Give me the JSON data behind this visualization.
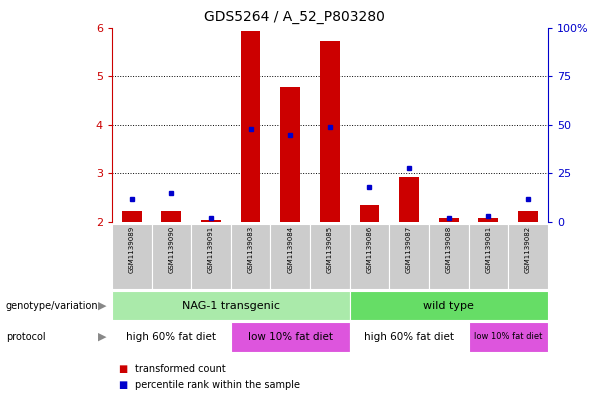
{
  "title": "GDS5264 / A_52_P803280",
  "samples": [
    "GSM1139089",
    "GSM1139090",
    "GSM1139091",
    "GSM1139083",
    "GSM1139084",
    "GSM1139085",
    "GSM1139086",
    "GSM1139087",
    "GSM1139088",
    "GSM1139081",
    "GSM1139082"
  ],
  "transformed_counts": [
    2.22,
    2.22,
    2.05,
    5.92,
    4.78,
    5.72,
    2.35,
    2.92,
    2.08,
    2.08,
    2.22
  ],
  "percentile_ranks": [
    12,
    15,
    2,
    48,
    45,
    49,
    18,
    28,
    2,
    3,
    12
  ],
  "ylim_left": [
    2.0,
    6.0
  ],
  "ylim_right": [
    0,
    100
  ],
  "yticks_left": [
    2,
    3,
    4,
    5,
    6
  ],
  "yticks_right": [
    0,
    25,
    50,
    75,
    100
  ],
  "bar_color": "#cc0000",
  "dot_color": "#0000cc",
  "plot_bg": "#ffffff",
  "tick_label_color_left": "#cc0000",
  "tick_label_color_right": "#0000cc",
  "genotype_groups": [
    {
      "label": "NAG-1 transgenic",
      "start": 0,
      "end": 5,
      "color": "#aaeaaa"
    },
    {
      "label": "wild type",
      "start": 6,
      "end": 10,
      "color": "#66dd66"
    }
  ],
  "protocol_groups": [
    {
      "label": "high 60% fat diet",
      "start": 0,
      "end": 2,
      "color": "#dd66dd"
    },
    {
      "label": "low 10% fat diet",
      "start": 3,
      "end": 5,
      "color": "#dd66dd"
    },
    {
      "label": "high 60% fat diet",
      "start": 6,
      "end": 8,
      "color": "#dd66dd"
    },
    {
      "label": "low 10% fat diet",
      "start": 9,
      "end": 10,
      "color": "#dd66dd"
    }
  ],
  "legend_items": [
    {
      "label": "transformed count",
      "color": "#cc0000"
    },
    {
      "label": "percentile rank within the sample",
      "color": "#0000cc"
    }
  ],
  "geno_label": "genotype/variation",
  "proto_label": "protocol"
}
